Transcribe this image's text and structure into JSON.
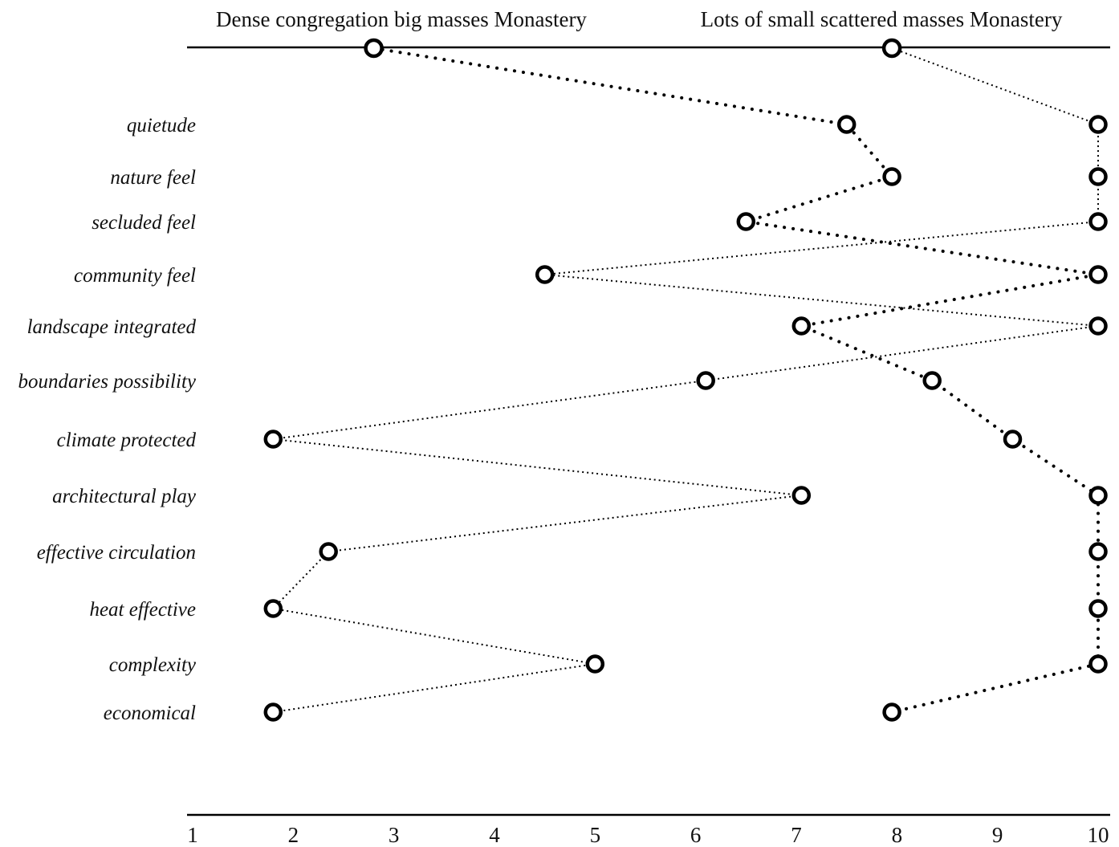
{
  "chart_data": {
    "type": "scatter",
    "categories": [
      "quietude",
      "nature feel",
      "secluded feel",
      "community feel",
      "landscape integrated",
      "boundaries  possibility",
      "climate protected",
      "architectural play",
      "effective circulation",
      "heat effective ",
      "complexity",
      "economical"
    ],
    "series": [
      {
        "name": "Dense congregation big masses Monastery",
        "header_value": 2.8,
        "values": [
          7.5,
          7.95,
          6.5,
          10,
          7.05,
          8.35,
          9.15,
          10,
          10,
          10,
          10,
          7.95
        ]
      },
      {
        "name": "Lots of  small scattered masses Monastery",
        "header_value": 7.95,
        "values": [
          10,
          10,
          10,
          4.5,
          10,
          6.1,
          1.8,
          7.05,
          2.35,
          1.8,
          5.0,
          1.8
        ]
      }
    ],
    "x_ticks": [
      "1",
      "2",
      "3",
      "4",
      "5",
      "6",
      "7",
      "8",
      "9",
      "10"
    ],
    "xlim": [
      1,
      10
    ],
    "grid": false,
    "legend": "top"
  }
}
